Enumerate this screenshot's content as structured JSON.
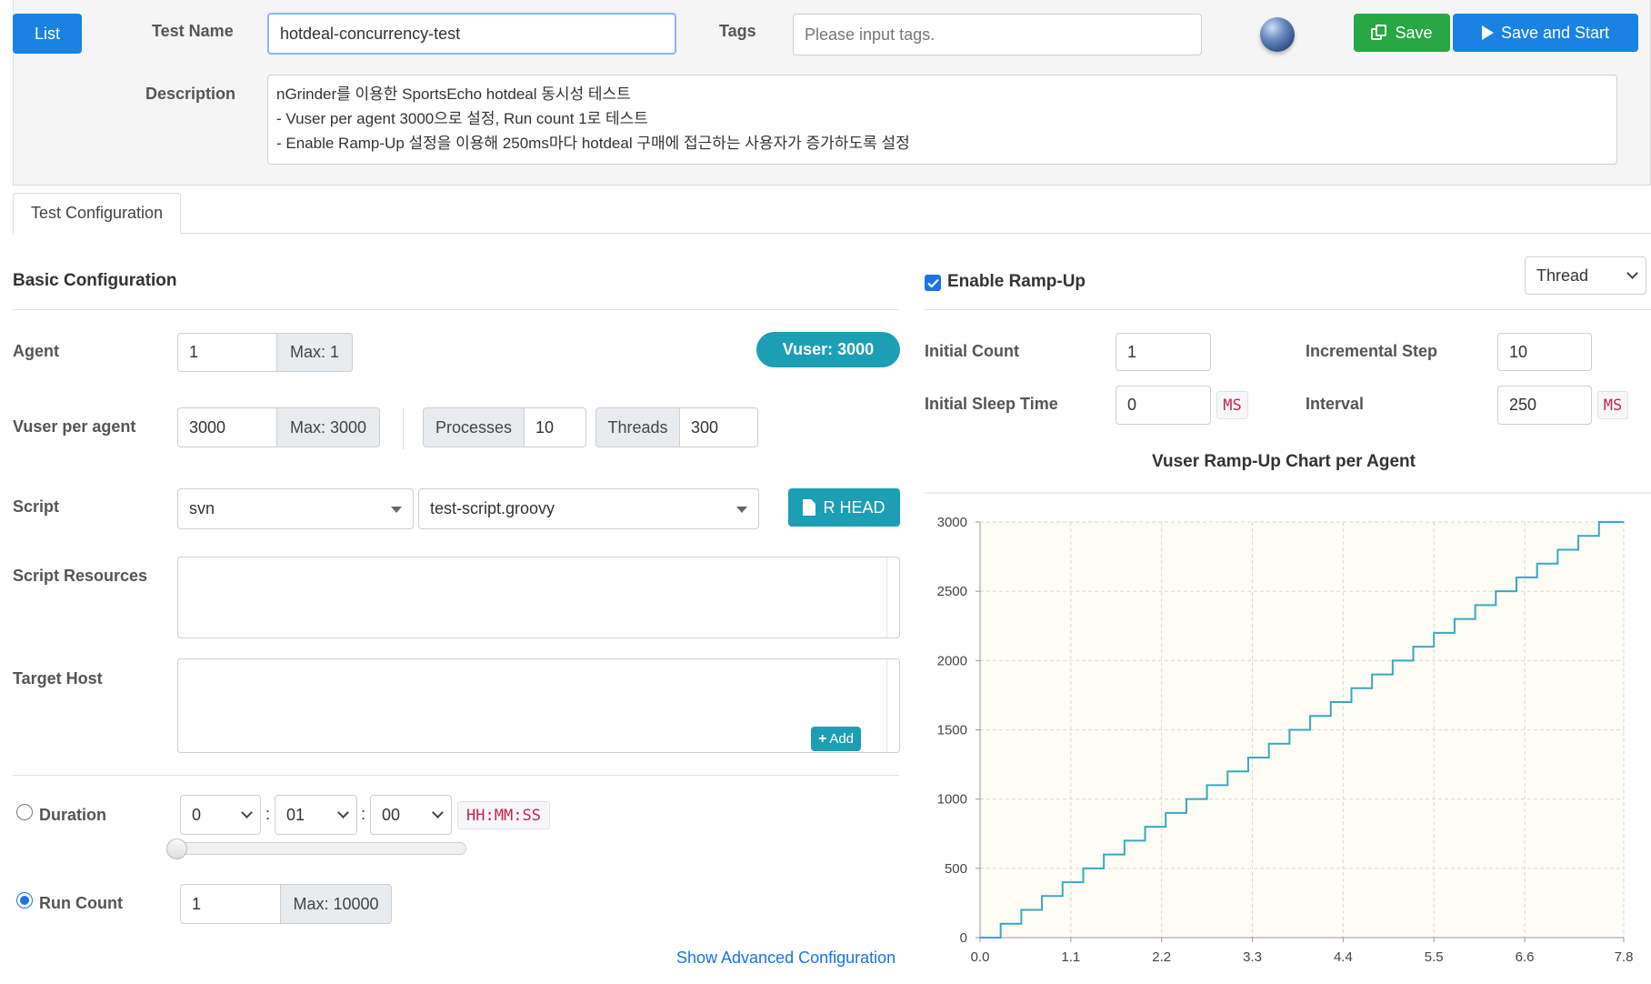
{
  "header": {
    "list_button": "List",
    "test_name_label": "Test Name",
    "test_name_value": "hotdeal-concurrency-test",
    "tags_label": "Tags",
    "tags_placeholder": "Please input tags.",
    "save_button": "Save",
    "save_and_start_button": "Save and Start",
    "description_label": "Description",
    "description_lines": [
      "nGrinder를 이용한 SportsEcho hotdeal 동시성 테스트",
      "- Vuser per agent 3000으로 설정, Run count 1로 테스트",
      "- Enable Ramp-Up 설정을 이용해 250ms마다 hotdeal 구매에 접근하는 사용자가 증가하도록 설정"
    ]
  },
  "tabs": [
    {
      "label": "Test Configuration",
      "active": true
    }
  ],
  "basic": {
    "title": "Basic Configuration",
    "agent_label": "Agent",
    "agent_value": "1",
    "agent_max": "Max: 1",
    "vuser_badge": "Vuser: 3000",
    "vuser_label": "Vuser per agent",
    "vuser_value": "3000",
    "vuser_max": "Max: 3000",
    "processes_label": "Processes",
    "processes_value": "10",
    "threads_label": "Threads",
    "threads_value": "300",
    "script_label": "Script",
    "script_repo": "svn",
    "script_file": "test-script.groovy",
    "script_rev_button": "R HEAD",
    "script_resources_label": "Script Resources",
    "target_host_label": "Target Host",
    "add_button": "Add",
    "duration_label": "Duration",
    "duration_hours": "0",
    "duration_minutes": "01",
    "duration_seconds": "00",
    "duration_format": "HH:MM:SS",
    "duration_slider_value": 0,
    "run_count_label": "Run Count",
    "run_count_value": "1",
    "run_count_max": "Max: 10000",
    "selected_mode": "Run Count",
    "advanced_link": "Show Advanced Configuration"
  },
  "rampup": {
    "enable_label": "Enable Ramp-Up",
    "enabled": true,
    "type_select": "Thread",
    "initial_count_label": "Initial Count",
    "initial_count_value": "1",
    "incremental_step_label": "Incremental Step",
    "incremental_step_value": "10",
    "initial_sleep_label": "Initial Sleep Time",
    "initial_sleep_value": "0",
    "initial_sleep_unit": "MS",
    "interval_label": "Interval",
    "interval_value": "250",
    "interval_unit": "MS"
  },
  "colors": {
    "primary": "#1a82e2",
    "success": "#28a745",
    "info": "#1c9fb4",
    "chart_line": "#3aa8c1",
    "chart_bg": "#fdfdf6"
  },
  "chart_data": {
    "type": "line",
    "title": "Vuser Ramp-Up Chart per Agent",
    "xlabel": "",
    "ylabel": "",
    "step": true,
    "xlim": [
      0,
      7.8
    ],
    "ylim": [
      0,
      3000
    ],
    "x_ticks": [
      "0.0",
      "1.1",
      "2.2",
      "3.3",
      "4.4",
      "5.5",
      "6.6",
      "7.8"
    ],
    "y_ticks": [
      "0",
      "500",
      "1000",
      "1500",
      "2000",
      "2500",
      "3000"
    ],
    "grid": true,
    "series": [
      {
        "x": [
          0,
          0.25,
          0.5,
          0.75,
          1.0,
          1.25,
          1.5,
          1.75,
          2.0,
          2.25,
          2.5,
          2.75,
          3.0,
          3.25,
          3.5,
          3.75,
          4.0,
          4.25,
          4.5,
          4.75,
          5.0,
          5.25,
          5.5,
          5.75,
          6.0,
          6.25,
          6.5,
          6.75,
          7.0,
          7.25,
          7.5,
          7.8
        ],
        "y": [
          0,
          100,
          200,
          300,
          400,
          500,
          600,
          700,
          800,
          900,
          1000,
          1100,
          1200,
          1300,
          1400,
          1500,
          1600,
          1700,
          1800,
          1900,
          2000,
          2100,
          2200,
          2300,
          2400,
          2500,
          2600,
          2700,
          2800,
          2900,
          3000,
          3000
        ]
      }
    ]
  }
}
